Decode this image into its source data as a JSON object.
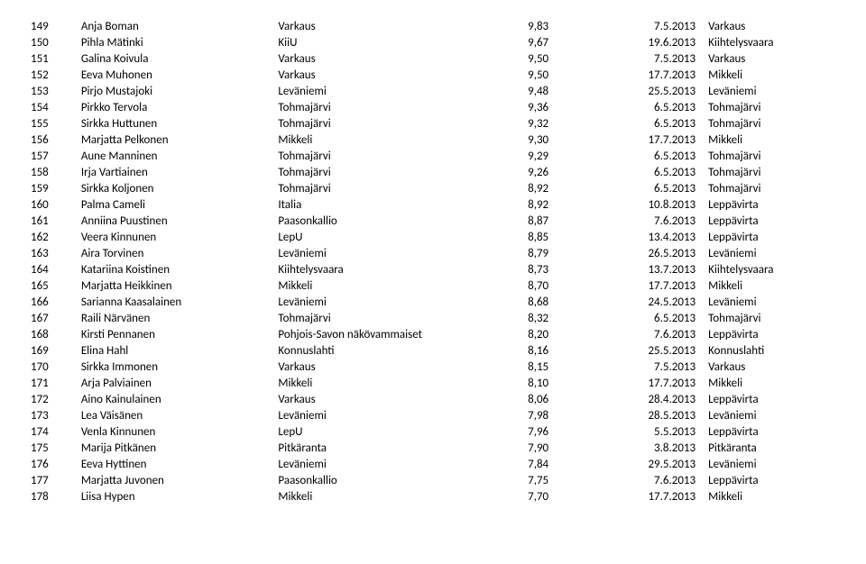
{
  "rows": [
    {
      "num": "149",
      "name": "Anja Boman",
      "club": "Varkaus",
      "score": "9,83",
      "date": "7.5.2013",
      "place": "Varkaus"
    },
    {
      "num": "150",
      "name": "Pihla Mätinki",
      "club": "KiiU",
      "score": "9,67",
      "date": "19.6.2013",
      "place": "Kiihtelysvaara"
    },
    {
      "num": "151",
      "name": "Galina Koivula",
      "club": "Varkaus",
      "score": "9,50",
      "date": "7.5.2013",
      "place": "Varkaus"
    },
    {
      "num": "152",
      "name": "Eeva Muhonen",
      "club": "Varkaus",
      "score": "9,50",
      "date": "17.7.2013",
      "place": "Mikkeli"
    },
    {
      "num": "153",
      "name": "Pirjo Mustajoki",
      "club": "Leväniemi",
      "score": "9,48",
      "date": "25.5.2013",
      "place": "Leväniemi"
    },
    {
      "num": "154",
      "name": "Pirkko Tervola",
      "club": "Tohmajärvi",
      "score": "9,36",
      "date": "6.5.2013",
      "place": "Tohmajärvi"
    },
    {
      "num": "155",
      "name": "Sirkka Huttunen",
      "club": "Tohmajärvi",
      "score": "9,32",
      "date": "6.5.2013",
      "place": "Tohmajärvi"
    },
    {
      "num": "156",
      "name": "Marjatta Pelkonen",
      "club": "Mikkeli",
      "score": "9,30",
      "date": "17.7.2013",
      "place": "Mikkeli"
    },
    {
      "num": "157",
      "name": "Aune Manninen",
      "club": "Tohmajärvi",
      "score": "9,29",
      "date": "6.5.2013",
      "place": "Tohmajärvi"
    },
    {
      "num": "158",
      "name": "Irja Vartiainen",
      "club": "Tohmajärvi",
      "score": "9,26",
      "date": "6.5.2013",
      "place": "Tohmajärvi"
    },
    {
      "num": "159",
      "name": "Sirkka Koljonen",
      "club": "Tohmajärvi",
      "score": "8,92",
      "date": "6.5.2013",
      "place": "Tohmajärvi"
    },
    {
      "num": "160",
      "name": "Palma Cameli",
      "club": "Italia",
      "score": "8,92",
      "date": "10.8.2013",
      "place": "Leppävirta"
    },
    {
      "num": "161",
      "name": "Anniina Puustinen",
      "club": "Paasonkallio",
      "score": "8,87",
      "date": "7.6.2013",
      "place": "Leppävirta"
    },
    {
      "num": "162",
      "name": "Veera Kinnunen",
      "club": "LepU",
      "score": "8,85",
      "date": "13.4.2013",
      "place": "Leppävirta"
    },
    {
      "num": "163",
      "name": "Aira Torvinen",
      "club": "Leväniemi",
      "score": "8,79",
      "date": "26.5.2013",
      "place": "Leväniemi"
    },
    {
      "num": "164",
      "name": "Katariina Koistinen",
      "club": "Kiihtelysvaara",
      "score": "8,73",
      "date": "13.7.2013",
      "place": "Kiihtelysvaara"
    },
    {
      "num": "165",
      "name": "Marjatta Heikkinen",
      "club": "Mikkeli",
      "score": "8,70",
      "date": "17.7.2013",
      "place": "Mikkeli"
    },
    {
      "num": "166",
      "name": "Sarianna Kaasalainen",
      "club": "Leväniemi",
      "score": "8,68",
      "date": "24.5.2013",
      "place": "Leväniemi"
    },
    {
      "num": "167",
      "name": "Raili Närvänen",
      "club": "Tohmajärvi",
      "score": "8,32",
      "date": "6.5.2013",
      "place": "Tohmajärvi"
    },
    {
      "num": "168",
      "name": "Kirsti Pennanen",
      "club": "Pohjois-Savon näkövammaiset",
      "score": "8,20",
      "date": "7.6.2013",
      "place": "Leppävirta"
    },
    {
      "num": "169",
      "name": "Elina Hahl",
      "club": "Konnuslahti",
      "score": "8,16",
      "date": "25.5.2013",
      "place": "Konnuslahti"
    },
    {
      "num": "170",
      "name": "Sirkka Immonen",
      "club": "Varkaus",
      "score": "8,15",
      "date": "7.5.2013",
      "place": "Varkaus"
    },
    {
      "num": "171",
      "name": "Arja Palviainen",
      "club": "Mikkeli",
      "score": "8,10",
      "date": "17.7.2013",
      "place": "Mikkeli"
    },
    {
      "num": "172",
      "name": "Aino Kainulainen",
      "club": "Varkaus",
      "score": "8,06",
      "date": "28.4.2013",
      "place": "Leppävirta"
    },
    {
      "num": "173",
      "name": "Lea Väisänen",
      "club": "Leväniemi",
      "score": "7,98",
      "date": "28.5.2013",
      "place": "Leväniemi"
    },
    {
      "num": "174",
      "name": "Venla Kinnunen",
      "club": "LepU",
      "score": "7,96",
      "date": "5.5.2013",
      "place": "Leppävirta"
    },
    {
      "num": "175",
      "name": "Marija Pitkänen",
      "club": "Pitkäranta",
      "score": "7,90",
      "date": "3.8.2013",
      "place": "Pitkäranta"
    },
    {
      "num": "176",
      "name": "Eeva Hyttinen",
      "club": "Leväniemi",
      "score": "7,84",
      "date": "29.5.2013",
      "place": "Leväniemi"
    },
    {
      "num": "177",
      "name": "Marjatta Juvonen",
      "club": "Paasonkallio",
      "score": "7,75",
      "date": "7.6.2013",
      "place": "Leppävirta"
    },
    {
      "num": "178",
      "name": "Liisa Hypen",
      "club": "Mikkeli",
      "score": "7,70",
      "date": "17.7.2013",
      "place": "Mikkeli"
    }
  ]
}
